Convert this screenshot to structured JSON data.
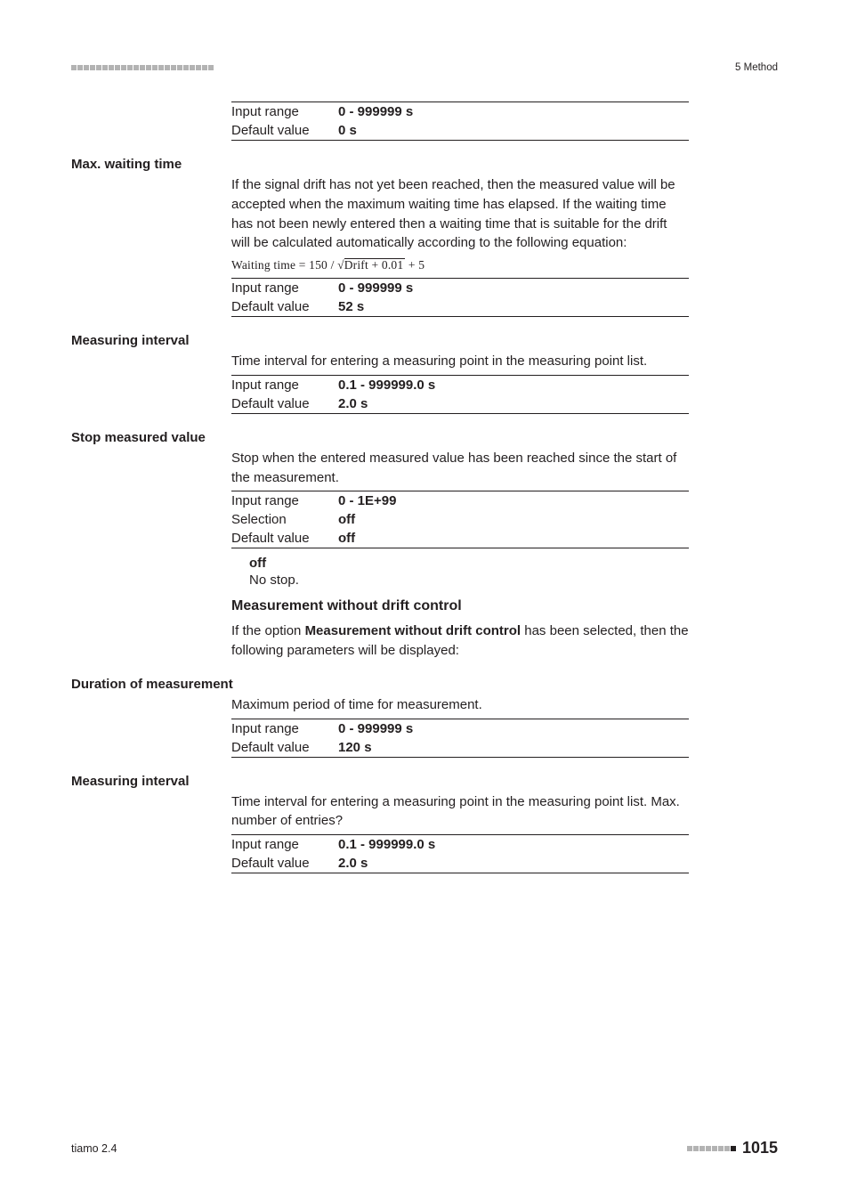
{
  "header": {
    "right": "5 Method"
  },
  "t1": {
    "r1": {
      "label": "Input range",
      "value": "0 - 999999 s"
    },
    "r2": {
      "label": "Default value",
      "value": "0 s"
    }
  },
  "max_waiting": {
    "title": "Max. waiting time",
    "desc": "If the signal drift has not yet been reached, then the measured value will be accepted when the maximum waiting time has elapsed. If the waiting time has not been newly entered then a waiting time that is suitable for the drift will be calculated automatically according to the following equation:",
    "formula_pre": "Waiting time = 150 / ",
    "formula_sqrt": "Drift + 0.01",
    "formula_post": " + 5",
    "r1": {
      "label": "Input range",
      "value": "0 - 999999 s"
    },
    "r2": {
      "label": "Default value",
      "value": "52 s"
    }
  },
  "meas_interval_1": {
    "title": "Measuring interval",
    "desc": "Time interval for entering a measuring point in the measuring point list.",
    "r1": {
      "label": "Input range",
      "value": "0.1 - 999999.0 s"
    },
    "r2": {
      "label": "Default value",
      "value": "2.0 s"
    }
  },
  "stop_mv": {
    "title": "Stop measured value",
    "desc": "Stop when the entered measured value has been reached since the start of the measurement.",
    "r1": {
      "label": "Input range",
      "value": "0 - 1E+99"
    },
    "r2": {
      "label": "Selection",
      "value": "off"
    },
    "r3": {
      "label": "Default value",
      "value": "off"
    },
    "off_lbl": "off",
    "off_desc": "No stop."
  },
  "mwdc": {
    "heading": "Measurement without drift control",
    "desc_pre": "If the option ",
    "desc_bold": "Measurement without drift control",
    "desc_post": " has been selected, then the following parameters will be displayed:"
  },
  "duration": {
    "title": "Duration of measurement",
    "desc": "Maximum period of time for measurement.",
    "r1": {
      "label": "Input range",
      "value": "0 - 999999 s"
    },
    "r2": {
      "label": "Default value",
      "value": "120 s"
    }
  },
  "meas_interval_2": {
    "title": "Measuring interval",
    "desc": "Time interval for entering a measuring point in the measuring point list. Max. number of entries?",
    "r1": {
      "label": "Input range",
      "value": "0.1 - 999999.0 s"
    },
    "r2": {
      "label": "Default value",
      "value": "2.0 s"
    }
  },
  "footer": {
    "left": "tiamo 2.4",
    "page": "1015"
  }
}
